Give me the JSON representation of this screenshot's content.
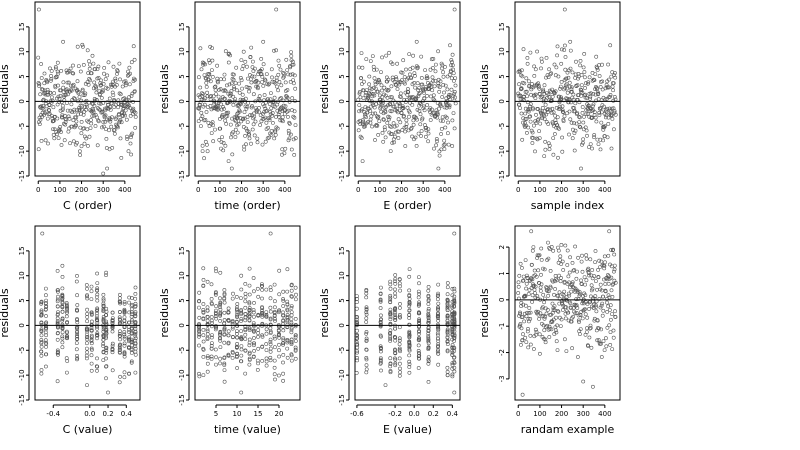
{
  "figure": {
    "background": "#ffffff",
    "point_color": "#555555"
  },
  "chart_data": [
    {
      "type": "scatter",
      "xlabel": "C (order)",
      "ylabel": "residuals",
      "xlim": [
        -15,
        470
      ],
      "ylim": [
        -15,
        20
      ],
      "xticks": [
        0,
        100,
        200,
        300,
        400
      ],
      "xtick_labels": [
        "0",
        "100",
        "200",
        "300",
        "400"
      ],
      "yticks": [
        -15,
        -10,
        -5,
        0,
        5,
        10,
        15
      ],
      "ytick_labels": [
        "-15",
        "-10",
        "-5",
        "0",
        "5",
        "10",
        "15"
      ],
      "reference_line": 0,
      "grid": false,
      "series": [
        {
          "n": 450,
          "x_range": [
            0,
            450
          ],
          "distribution": "normal",
          "sd": 4.6,
          "points": [
            [
              3,
              18.5
            ],
            [
              318,
              -13.5
            ],
            [
              300,
              -14.5
            ],
            [
              200,
              -9
            ],
            [
              115,
              12
            ],
            [
              90,
              6
            ],
            [
              260,
              6.5
            ]
          ]
        }
      ]
    },
    {
      "type": "scatter",
      "xlabel": "time (order)",
      "ylabel": "residuals",
      "xlim": [
        -15,
        470
      ],
      "ylim": [
        -15,
        20
      ],
      "xticks": [
        0,
        100,
        200,
        300,
        400
      ],
      "xtick_labels": [
        "0",
        "100",
        "200",
        "300",
        "400"
      ],
      "yticks": [
        -15,
        -10,
        -5,
        0,
        5,
        10,
        15
      ],
      "ytick_labels": [
        "-15",
        "-10",
        "-5",
        "0",
        "5",
        "10",
        "15"
      ],
      "reference_line": 0,
      "grid": false,
      "series": [
        {
          "n": 450,
          "x_range": [
            0,
            450
          ],
          "distribution": "normal",
          "sd": 4.6,
          "points": [
            [
              360,
              18.5
            ],
            [
              155,
              -13.5
            ],
            [
              140,
              -12
            ],
            [
              20,
              -10
            ],
            [
              300,
              12
            ],
            [
              210,
              10
            ]
          ]
        }
      ]
    },
    {
      "type": "scatter",
      "xlabel": "E (order)",
      "ylabel": "residuals",
      "xlim": [
        -15,
        470
      ],
      "ylim": [
        -15,
        20
      ],
      "xticks": [
        0,
        100,
        200,
        300,
        400
      ],
      "xtick_labels": [
        "0",
        "100",
        "200",
        "300",
        "400"
      ],
      "yticks": [
        -15,
        -10,
        -5,
        0,
        5,
        10,
        15
      ],
      "ytick_labels": [
        "-15",
        "-10",
        "-5",
        "0",
        "5",
        "10",
        "15"
      ],
      "reference_line": 0,
      "grid": false,
      "series": [
        {
          "n": 450,
          "x_range": [
            0,
            450
          ],
          "distribution": "normal",
          "sd": 4.6,
          "points": [
            [
              445,
              18.5
            ],
            [
              370,
              -13.5
            ],
            [
              20,
              -12
            ],
            [
              270,
              12
            ],
            [
              150,
              -10
            ]
          ]
        }
      ]
    },
    {
      "type": "scatter",
      "xlabel": "sample index",
      "ylabel": "residuals",
      "xlim": [
        -15,
        470
      ],
      "ylim": [
        -15,
        20
      ],
      "xticks": [
        0,
        100,
        200,
        300,
        400
      ],
      "xtick_labels": [
        "0",
        "100",
        "200",
        "300",
        "400"
      ],
      "yticks": [
        -15,
        -10,
        -5,
        0,
        5,
        10,
        15
      ],
      "ytick_labels": [
        "-15",
        "-10",
        "-5",
        "0",
        "5",
        "10",
        "15"
      ],
      "reference_line": 0,
      "grid": false,
      "series": [
        {
          "n": 450,
          "x_range": [
            0,
            450
          ],
          "distribution": "normal",
          "sd": 4.6,
          "points": [
            [
              215,
              18.5
            ],
            [
              290,
              -13.5
            ],
            [
              120,
              -11
            ],
            [
              240,
              12
            ],
            [
              360,
              9
            ]
          ]
        }
      ]
    },
    {
      "type": "scatter",
      "xlabel": "C (value)",
      "ylabel": "residuals",
      "xlim": [
        -0.6,
        0.55
      ],
      "ylim": [
        -15,
        20
      ],
      "xticks": [
        -0.4,
        0,
        0.2,
        0.4
      ],
      "xtick_labels": [
        "-0.4",
        "0.0",
        "0.2",
        "0.4"
      ],
      "yticks": [
        -15,
        -10,
        -5,
        0,
        5,
        10,
        15
      ],
      "ytick_labels": [
        "-15",
        "-10",
        "-5",
        "0",
        "5",
        "10",
        "15"
      ],
      "reference_line": 0,
      "grid": false,
      "series": [
        {
          "n": 450,
          "x_levels": [
            -0.53,
            -0.48,
            -0.35,
            -0.3,
            -0.25,
            -0.14,
            -0.03,
            0.02,
            0.08,
            0.15,
            0.18,
            0.25,
            0.33,
            0.38,
            0.43,
            0.46,
            0.5
          ],
          "distribution": "normal",
          "sd": 4.6,
          "points": [
            [
              -0.52,
              18.5
            ],
            [
              0.2,
              -13.5
            ],
            [
              -0.03,
              -12
            ],
            [
              -0.3,
              12
            ]
          ]
        }
      ]
    },
    {
      "type": "scatter",
      "xlabel": "time (value)",
      "ylabel": "residuals",
      "xlim": [
        0,
        25
      ],
      "ylim": [
        -15,
        20
      ],
      "xticks": [
        5,
        10,
        15,
        20
      ],
      "xtick_labels": [
        "5",
        "10",
        "15",
        "20"
      ],
      "yticks": [
        -15,
        -10,
        -5,
        0,
        5,
        10,
        15
      ],
      "ytick_labels": [
        "-15",
        "-10",
        "-5",
        "0",
        "5",
        "10",
        "15"
      ],
      "reference_line": 0,
      "grid": false,
      "series": [
        {
          "n": 450,
          "x_levels": [
            1,
            2,
            3,
            4,
            5,
            6,
            7,
            8,
            9,
            10,
            11,
            12,
            13,
            14,
            15,
            16,
            17,
            18,
            19,
            20,
            21,
            22,
            23,
            24
          ],
          "distribution": "normal",
          "sd": 4.6,
          "points": [
            [
              18,
              18.5
            ],
            [
              11,
              -13.5
            ],
            [
              11,
              10
            ],
            [
              2,
              -10
            ]
          ]
        }
      ]
    },
    {
      "type": "scatter",
      "xlabel": "E (value)",
      "ylabel": "residuals",
      "xlim": [
        -0.62,
        0.48
      ],
      "ylim": [
        -15,
        20
      ],
      "xticks": [
        -0.6,
        -0.2,
        0,
        0.2,
        0.4
      ],
      "xtick_labels": [
        "-0.6",
        "-0.2",
        "0.0",
        "0.2",
        "0.4"
      ],
      "yticks": [
        -15,
        -10,
        -5,
        0,
        5,
        10,
        15
      ],
      "ytick_labels": [
        "-15",
        "-10",
        "-5",
        "0",
        "5",
        "10",
        "15"
      ],
      "reference_line": 0,
      "grid": false,
      "series": [
        {
          "n": 450,
          "x_levels": [
            -0.6,
            -0.5,
            -0.35,
            -0.25,
            -0.2,
            -0.15,
            -0.05,
            0.05,
            0.15,
            0.25,
            0.35,
            0.4,
            0.42
          ],
          "distribution": "normal",
          "sd": 4.6,
          "points": [
            [
              0.42,
              18.5
            ],
            [
              0.42,
              -13.5
            ],
            [
              -0.3,
              -12
            ],
            [
              0.35,
              -10
            ]
          ]
        }
      ]
    },
    {
      "type": "scatter",
      "xlabel": "randam example",
      "ylabel": "residuals",
      "xlim": [
        -15,
        470
      ],
      "ylim": [
        -3.8,
        2.8
      ],
      "xticks": [
        0,
        100,
        200,
        300,
        400
      ],
      "xtick_labels": [
        "0",
        "100",
        "200",
        "300",
        "400"
      ],
      "yticks": [
        -3,
        -2,
        -1,
        0,
        1,
        2
      ],
      "ytick_labels": [
        "-3",
        "-2",
        "-1",
        "0",
        "1",
        "2"
      ],
      "reference_line": 0,
      "grid": false,
      "series": [
        {
          "n": 450,
          "x_range": [
            0,
            450
          ],
          "distribution": "normal",
          "sd": 1.0,
          "points": [
            [
              20,
              -3.6
            ],
            [
              345,
              -3.3
            ],
            [
              300,
              -3.1
            ],
            [
              420,
              2.6
            ],
            [
              60,
              2.6
            ]
          ]
        }
      ]
    }
  ]
}
